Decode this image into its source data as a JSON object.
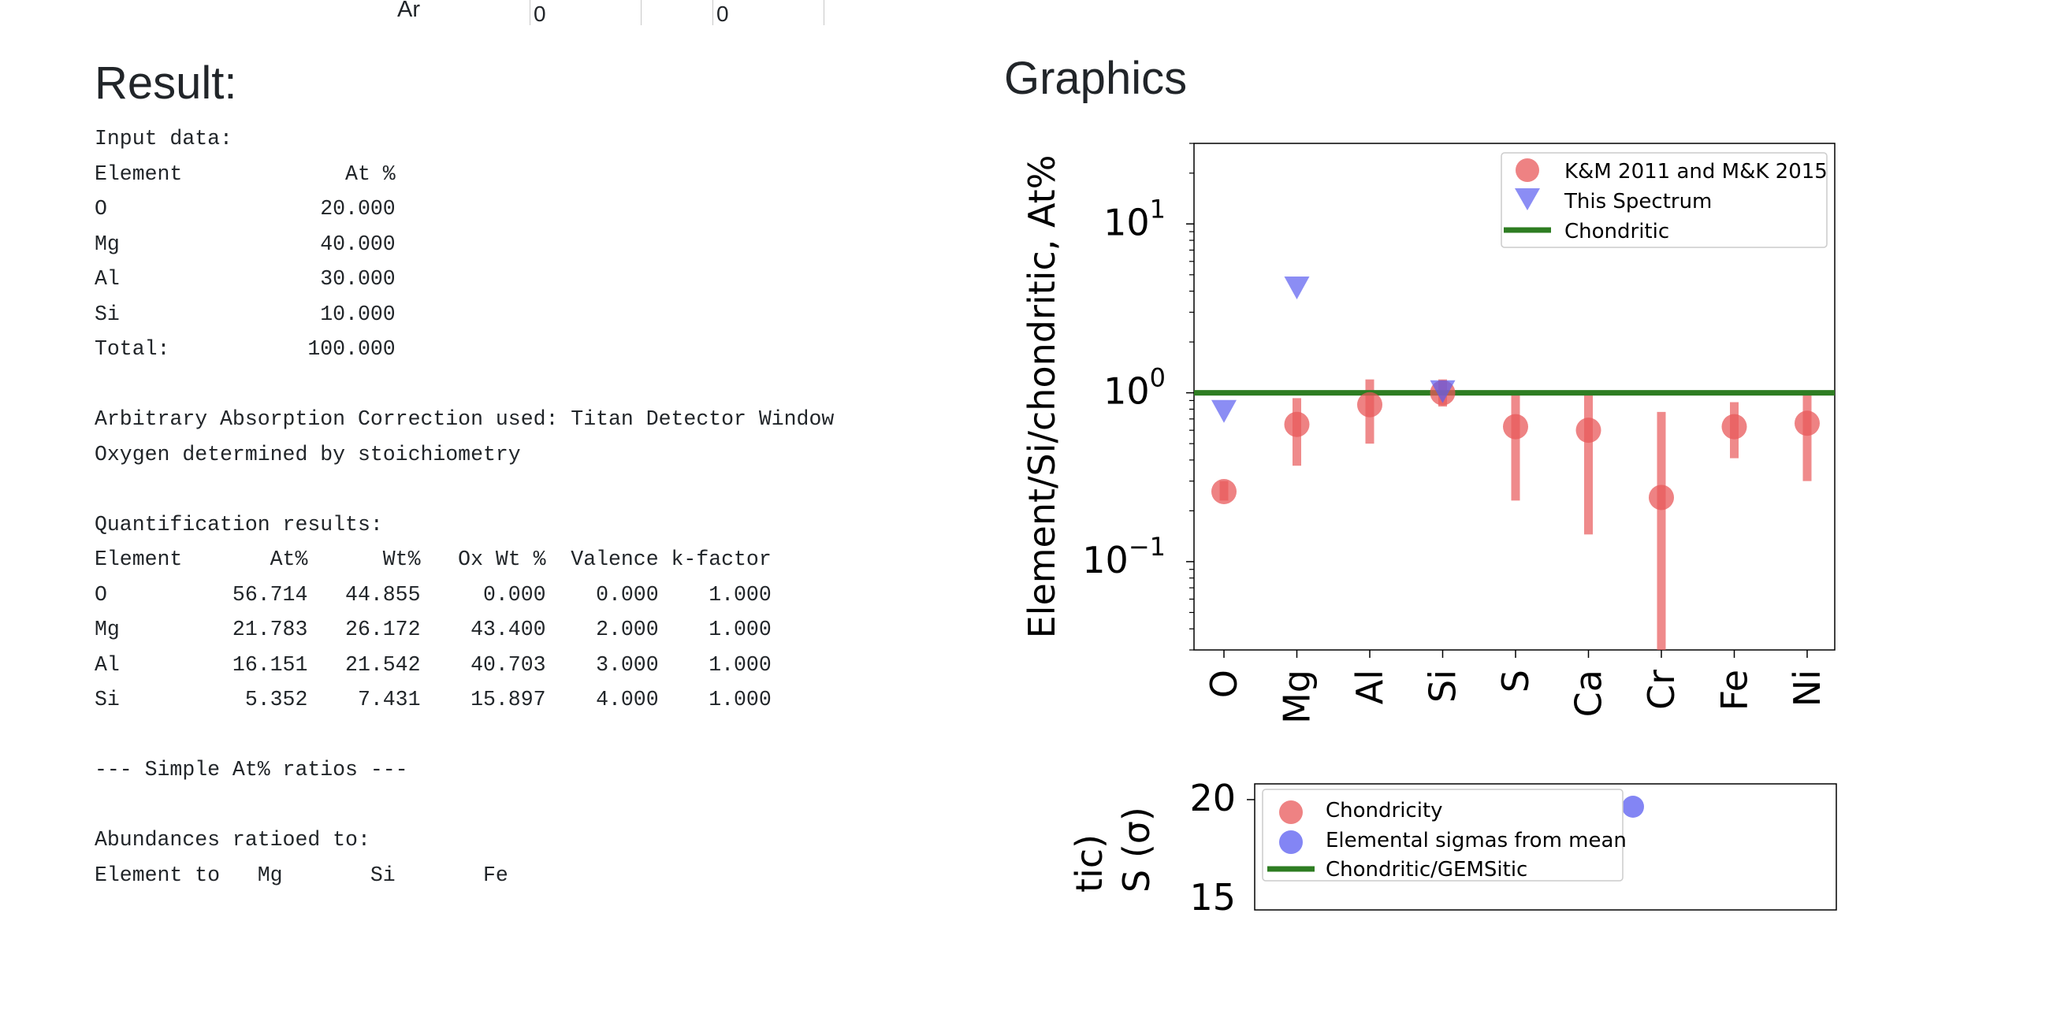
{
  "top_row": {
    "element": "Ar",
    "values": [
      "0",
      "0"
    ]
  },
  "result": {
    "heading": "Result:",
    "lines": [
      "Input data:",
      "Element             At %",
      "O                 20.000",
      "Mg                40.000",
      "Al                30.000",
      "Si                10.000",
      "Total:           100.000",
      "",
      "Arbitrary Absorption Correction used: Titan Detector Window",
      "Oxygen determined by stoichiometry",
      "",
      "Quantification results:",
      "Element       At%      Wt%   Ox Wt %  Valence k-factor",
      "O          56.714   44.855     0.000    0.000    1.000",
      "Mg         21.783   26.172    43.400    2.000    1.000",
      "Al         16.151   21.542    40.703    3.000    1.000",
      "Si          5.352    7.431    15.897    4.000    1.000",
      "",
      "--- Simple At% ratios ---",
      "",
      "Abundances ratioed to:",
      "Element to   Mg       Si       Fe"
    ]
  },
  "graphics": {
    "heading": "Graphics"
  },
  "chart_data": [
    {
      "type": "scatter",
      "title": "",
      "xlabel": "",
      "ylabel": "Element/Si/chondritic, At%",
      "yscale": "log",
      "ylim": [
        0.03,
        30
      ],
      "categories": [
        "O",
        "Mg",
        "Al",
        "Si",
        "S",
        "Ca",
        "Cr",
        "Fe",
        "Ni"
      ],
      "yticks": [
        {
          "base": "10",
          "exp": "−1",
          "value": 0.1
        },
        {
          "base": "10",
          "exp": "0",
          "value": 1
        },
        {
          "base": "10",
          "exp": "1",
          "value": 10
        }
      ],
      "legend_position": "top-right",
      "series": [
        {
          "name": "K&M 2011 and M&K 2015",
          "color": "#e8585a",
          "marker": "circle",
          "values": [
            0.26,
            0.65,
            0.85,
            1.0,
            0.63,
            0.6,
            0.24,
            0.63,
            0.66
          ],
          "error_low": [
            0.23,
            0.37,
            0.5,
            0.83,
            0.23,
            0.145,
            0.03,
            0.41,
            0.3
          ],
          "error_high": [
            0.3,
            0.93,
            1.2,
            1.2,
            1.0,
            1.0,
            0.77,
            0.88,
            1.0
          ]
        },
        {
          "name": "This Spectrum",
          "color": "#5a5cf0",
          "marker": "triangle-down",
          "values": [
            0.78,
            4.2,
            null,
            1.02,
            null,
            null,
            null,
            null,
            null
          ]
        },
        {
          "name": "Chondritic",
          "color": "#2e7d22",
          "marker": "line",
          "values": [
            1
          ]
        }
      ]
    },
    {
      "type": "scatter",
      "title": "",
      "ylabel_visible": [
        "tic)",
        "S (σ)"
      ],
      "ytick_labels": [
        "20",
        "15"
      ],
      "legend_position": "top-left",
      "series": [
        {
          "name": "Chondricity",
          "color": "#e8585a",
          "marker": "circle"
        },
        {
          "name": "Elemental sigmas from mean",
          "color": "#5a5cf0",
          "marker": "circle"
        },
        {
          "name": "Chondritic/GEMSitic",
          "color": "#2e7d22",
          "marker": "line"
        }
      ]
    }
  ]
}
